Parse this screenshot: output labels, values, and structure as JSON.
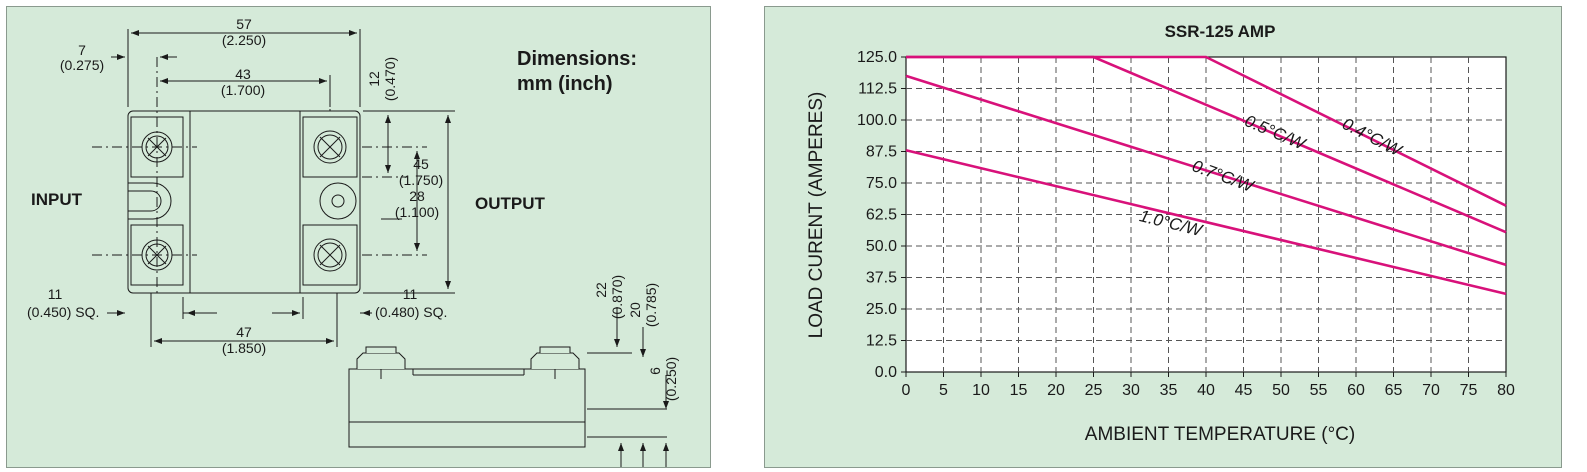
{
  "dimensions_drawing": {
    "heading_line1": "Dimensions:",
    "heading_line2": "mm (inch)",
    "input_label": "INPUT",
    "output_label": "OUTPUT",
    "dims": {
      "d57": "57",
      "d57_in": "(2.250)",
      "d7": "7",
      "d7_in": "(0.275)",
      "d43": "43",
      "d43_in": "(1.700)",
      "d12": "12",
      "d12_in": "(0.470)",
      "d45": "45",
      "d45_in": "(1.750)",
      "d28": "28",
      "d28_in": "(1.100)",
      "d11a": "11",
      "d11a_in": "(0.450) SQ.",
      "d11b": "11",
      "d11b_in": "(0.480) SQ.",
      "d47": "47",
      "d47_in": "(1.850)",
      "d22": "22",
      "d22_in": "(0.870)",
      "d20": "20",
      "d20_in": "(0.785)",
      "d6": "6",
      "d6_in": "(0.250)"
    }
  },
  "chart_data": {
    "type": "line",
    "title": "SSR-125 AMP",
    "xlabel": "AMBIENT  TEMPERATURE (°C)",
    "ylabel": "LOAD CURENT (AMPERES)",
    "xlim": [
      0,
      80
    ],
    "ylim": [
      0,
      125
    ],
    "grid": true,
    "xticks": [
      0,
      5,
      10,
      15,
      20,
      25,
      30,
      35,
      40,
      45,
      50,
      55,
      60,
      65,
      70,
      75,
      80
    ],
    "yticks": [
      "0.0",
      "12.5",
      "25.0",
      "37.5",
      "50.0",
      "62.5",
      "75.0",
      "87.5",
      "100.0",
      "112.5",
      "125.0"
    ],
    "series": [
      {
        "name": "0.4°C/W",
        "x": [
          0,
          40,
          80
        ],
        "y": [
          125,
          125,
          66
        ]
      },
      {
        "name": "0.5°C/W",
        "x": [
          0,
          25,
          80
        ],
        "y": [
          125,
          125,
          55.5
        ]
      },
      {
        "name": "0.7°C/W",
        "x": [
          0,
          80
        ],
        "y": [
          117.5,
          42.5
        ]
      },
      {
        "name": "1.0°C/W",
        "x": [
          0,
          80
        ],
        "y": [
          88,
          31
        ]
      }
    ],
    "series_color": "#d8117a"
  }
}
